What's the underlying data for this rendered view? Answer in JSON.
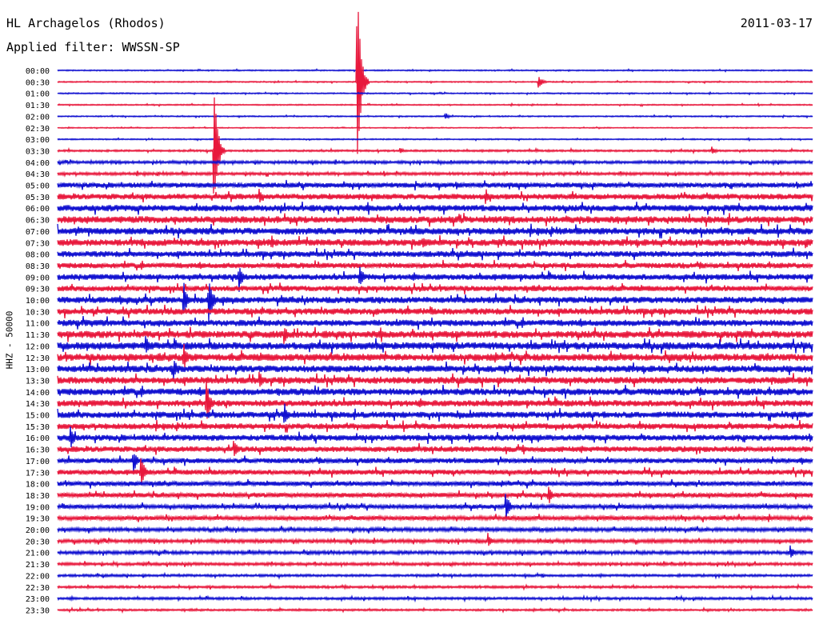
{
  "header": {
    "title": "HL Archagelos (Rhodos)",
    "date": "2011-03-17",
    "filter": "Applied filter: WWSSN-SP"
  },
  "channel_label": "HHZ - 50000",
  "colors": {
    "even_trace": "#1010d0",
    "odd_trace": "#e8183c",
    "background": "#ffffff"
  },
  "chart_data": {
    "type": "line",
    "title": "HL Archagelos (Rhodos)",
    "subtitle": "Applied filter: WWSSN-SP",
    "ylabel": "HHZ - 50000",
    "xlabel": "",
    "trace_minutes": 30,
    "categories": [
      "00:00",
      "00:30",
      "01:00",
      "01:30",
      "02:00",
      "02:30",
      "03:00",
      "03:30",
      "04:00",
      "04:30",
      "05:00",
      "05:30",
      "06:00",
      "06:30",
      "07:00",
      "07:30",
      "08:00",
      "08:30",
      "09:00",
      "09:30",
      "10:00",
      "10:30",
      "11:00",
      "11:30",
      "12:00",
      "12:30",
      "13:00",
      "13:30",
      "14:00",
      "14:30",
      "15:00",
      "15:30",
      "16:00",
      "16:30",
      "17:00",
      "17:30",
      "18:00",
      "18:30",
      "19:00",
      "19:30",
      "20:00",
      "20:30",
      "21:00",
      "21:30",
      "22:00",
      "22:30",
      "23:00",
      "23:30"
    ],
    "noise_level": [
      0.5,
      0.5,
      0.5,
      0.5,
      0.5,
      0.4,
      0.5,
      0.8,
      1.2,
      1.2,
      2.2,
      2.5,
      2.8,
      3.0,
      3.0,
      3.0,
      2.6,
      2.4,
      2.6,
      2.4,
      2.8,
      2.8,
      2.8,
      3.2,
      3.2,
      3.2,
      3.0,
      3.0,
      3.0,
      2.8,
      2.8,
      2.6,
      2.6,
      2.5,
      2.2,
      2.2,
      2.0,
      2.0,
      1.8,
      1.8,
      1.6,
      1.5,
      1.4,
      1.2,
      1.0,
      1.0,
      1.0,
      0.8
    ],
    "events": [
      {
        "trace": "00:30",
        "minute": 19.1,
        "amplitude": 10
      },
      {
        "trace": "02:00",
        "minute": 15.4,
        "amplitude": 5
      },
      {
        "trace": "03:30",
        "minute": 6.2,
        "amplitude": 95
      },
      {
        "trace": "03:30",
        "minute": 13.6,
        "amplitude": 5
      },
      {
        "trace": "03:30",
        "minute": 26.0,
        "amplitude": 6
      },
      {
        "trace": "00:30",
        "minute": 11.9,
        "amplitude": 130
      },
      {
        "trace": "05:30",
        "minute": 8.0,
        "amplitude": 12
      },
      {
        "trace": "05:30",
        "minute": 17.0,
        "amplitude": 12
      },
      {
        "trace": "07:30",
        "minute": 8.5,
        "amplitude": 10
      },
      {
        "trace": "07:30",
        "minute": 14.5,
        "amplitude": 10
      },
      {
        "trace": "09:00",
        "minute": 7.2,
        "amplitude": 22
      },
      {
        "trace": "09:00",
        "minute": 12.0,
        "amplitude": 18
      },
      {
        "trace": "10:00",
        "minute": 6.0,
        "amplitude": 40
      },
      {
        "trace": "10:00",
        "minute": 5.0,
        "amplitude": 25
      },
      {
        "trace": "11:30",
        "minute": 9.0,
        "amplitude": 15
      },
      {
        "trace": "12:00",
        "minute": 3.5,
        "amplitude": 14
      },
      {
        "trace": "12:30",
        "minute": 5.0,
        "amplitude": 20
      },
      {
        "trace": "13:00",
        "minute": 4.6,
        "amplitude": 18
      },
      {
        "trace": "13:30",
        "minute": 8.0,
        "amplitude": 15
      },
      {
        "trace": "14:30",
        "minute": 5.9,
        "amplitude": 35
      },
      {
        "trace": "15:00",
        "minute": 9.0,
        "amplitude": 18
      },
      {
        "trace": "16:00",
        "minute": 0.5,
        "amplitude": 20
      },
      {
        "trace": "16:30",
        "minute": 7.0,
        "amplitude": 15
      },
      {
        "trace": "17:00",
        "minute": 3.0,
        "amplitude": 18
      },
      {
        "trace": "17:30",
        "minute": 3.3,
        "amplitude": 25
      },
      {
        "trace": "18:30",
        "minute": 19.5,
        "amplitude": 14
      },
      {
        "trace": "19:00",
        "minute": 17.8,
        "amplitude": 22
      },
      {
        "trace": "20:30",
        "minute": 17.1,
        "amplitude": 12
      },
      {
        "trace": "21:00",
        "minute": 29.1,
        "amplitude": 12
      }
    ]
  }
}
